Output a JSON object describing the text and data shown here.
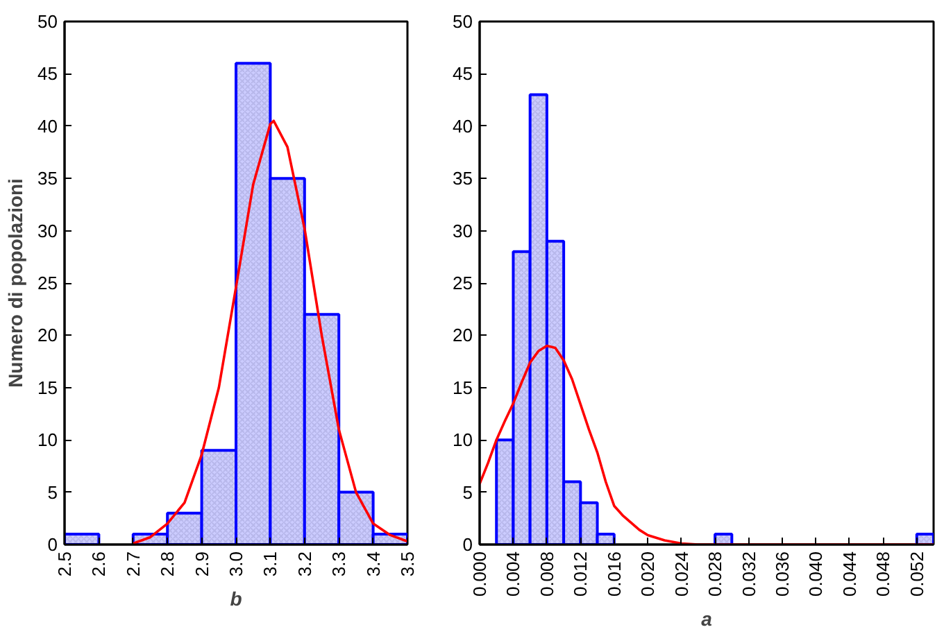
{
  "chart_data": [
    {
      "type": "histogram",
      "xlabel": "b",
      "ylabel": "Numero di popolazioni",
      "bins": [
        2.5,
        2.6,
        2.7,
        2.8,
        2.9,
        3.0,
        3.1,
        3.2,
        3.3,
        3.4,
        3.5
      ],
      "values": [
        1,
        0,
        1,
        3,
        9,
        46,
        35,
        22,
        5,
        1
      ],
      "color": "#ccccff",
      "series": [
        {
          "type": "line",
          "color": "#ff0000",
          "x": [
            2.7,
            2.75,
            2.8,
            2.85,
            2.9,
            2.95,
            3.0,
            3.05,
            3.1,
            3.11,
            3.15,
            3.2,
            3.25,
            3.3,
            3.35,
            3.4,
            3.45,
            3.5
          ],
          "values": [
            0.1,
            0.7,
            2,
            4,
            8.6,
            15,
            24.6,
            34.4,
            40.2,
            40.5,
            38,
            30.2,
            20,
            11,
            5,
            2,
            0.9,
            0.3
          ]
        }
      ],
      "xlim": [
        2.5,
        3.5
      ],
      "ylim": [
        0,
        50
      ],
      "xticks": [
        2.5,
        2.6,
        2.7,
        2.8,
        2.9,
        {
          "value": 3.0,
          "label": "3.0"
        },
        3.1,
        3.2,
        3.3,
        3.4,
        3.5
      ],
      "yticks": [
        0,
        5,
        10,
        15,
        20,
        25,
        30,
        35,
        40,
        45,
        50
      ],
      "grid": false
    },
    {
      "type": "histogram",
      "xlabel": "a",
      "bins": [
        0.002,
        0.004,
        0.006,
        0.008,
        0.01,
        0.012,
        0.014,
        0.016,
        0.018,
        0.02,
        0.022,
        0.024,
        0.026,
        0.028,
        0.03,
        0.032,
        0.034,
        0.036,
        0.038,
        0.04,
        0.042,
        0.044,
        0.046,
        0.048,
        0.05,
        0.052,
        0.054
      ],
      "values": [
        10,
        28,
        43,
        29,
        6,
        4,
        1,
        0,
        0,
        0,
        0,
        0,
        0,
        1,
        0,
        0,
        0,
        0,
        0,
        0,
        0,
        0,
        0,
        0,
        0,
        1
      ],
      "color": "#ccccff",
      "series": [
        {
          "type": "line",
          "color": "#ff0000",
          "x": [
            0,
            0.001,
            0.002,
            0.003,
            0.004,
            0.005,
            0.006,
            0.007,
            0.008,
            0.009,
            0.01,
            0.011,
            0.012,
            0.013,
            0.014,
            0.015,
            0.016,
            0.017,
            0.018,
            0.019,
            0.02,
            0.022,
            0.024,
            0.026,
            0.054
          ],
          "values": [
            5.8,
            7.8,
            10,
            11.8,
            13.5,
            15.5,
            17.4,
            18.5,
            19,
            18.8,
            17.6,
            15.8,
            13.4,
            11,
            8.8,
            6,
            3.7,
            2.8,
            2.1,
            1.4,
            0.9,
            0.4,
            0.1,
            0,
            0
          ]
        }
      ],
      "xlim": [
        0,
        0.054
      ],
      "ylim": [
        0,
        50
      ],
      "xticks": [
        {
          "value": 0,
          "label": "0.000"
        },
        {
          "value": 0.004,
          "label": "0.004"
        },
        {
          "value": 0.008,
          "label": "0.008"
        },
        {
          "value": 0.012,
          "label": "0.012"
        },
        {
          "value": 0.016,
          "label": "0.016"
        },
        {
          "value": 0.02,
          "label": "0.020"
        },
        {
          "value": 0.024,
          "label": "0.024"
        },
        {
          "value": 0.028,
          "label": "0.028"
        },
        {
          "value": 0.032,
          "label": "0.032"
        },
        {
          "value": 0.036,
          "label": "0.036"
        },
        {
          "value": 0.04,
          "label": "0.040"
        },
        {
          "value": 0.044,
          "label": "0.044"
        },
        {
          "value": 0.048,
          "label": "0.048"
        },
        {
          "value": 0.052,
          "label": "0.052"
        }
      ],
      "yticks": [
        0,
        5,
        10,
        15,
        20,
        25,
        30,
        35,
        40,
        45,
        50
      ],
      "grid": false
    }
  ]
}
